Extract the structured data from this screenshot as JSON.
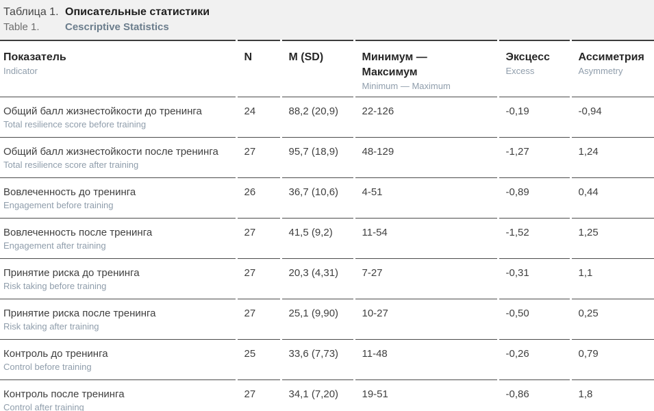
{
  "caption": {
    "label_ru": "Таблица 1.",
    "title_ru": "Описательные статистики",
    "label_en": "Table 1.",
    "title_en": "Cescriptive Statistics"
  },
  "table": {
    "columns": [
      {
        "ru": "Показатель",
        "en": "Indicator"
      },
      {
        "ru": "N",
        "en": ""
      },
      {
        "ru": "M (SD)",
        "en": ""
      },
      {
        "ru": "Минимум — Максимум",
        "en": "Minimum — Maximum"
      },
      {
        "ru": "Эксцесс",
        "en": "Excess"
      },
      {
        "ru": "Ассиметрия",
        "en": "Asymmetry"
      }
    ],
    "rows": [
      {
        "ru": "Общий балл жизнестойкости до тренинга",
        "en": "Total resilience score before training",
        "n": "24",
        "m_sd": "88,2 (20,9)",
        "min_max": "22-126",
        "excess": "-0,19",
        "asymmetry": "-0,94"
      },
      {
        "ru": "Общий балл жизнестойкости после тренинга",
        "en": "Total resilience score after training",
        "n": "27",
        "m_sd": "95,7 (18,9)",
        "min_max": "48-129",
        "excess": "-1,27",
        "asymmetry": "1,24"
      },
      {
        "ru": "Вовлеченность до тренинга",
        "en": "Engagement before training",
        "n": "26",
        "m_sd": "36,7 (10,6)",
        "min_max": "4-51",
        "excess": "-0,89",
        "asymmetry": "0,44"
      },
      {
        "ru": "Вовлеченность после тренинга",
        "en": "Engagement after training",
        "n": "27",
        "m_sd": "41,5 (9,2)",
        "min_max": "11-54",
        "excess": "-1,52",
        "asymmetry": "1,25"
      },
      {
        "ru": "Принятие риска до тренинга",
        "en": "Risk taking before training",
        "n": "27",
        "m_sd": "20,3 (4,31)",
        "min_max": "7-27",
        "excess": "-0,31",
        "asymmetry": "1,1"
      },
      {
        "ru": "Принятие риска после тренинга",
        "en": "Risk taking after training",
        "n": "27",
        "m_sd": "25,1 (9,90)",
        "min_max": "10-27",
        "excess": "-0,50",
        "asymmetry": "0,25"
      },
      {
        "ru": "Контроль до тренинга",
        "en": "Control before training",
        "n": "25",
        "m_sd": "33,6 (7,73)",
        "min_max": "11-48",
        "excess": "-0,26",
        "asymmetry": "0,79"
      },
      {
        "ru": "Контроль после тренинга",
        "en": "Control after training",
        "n": "27",
        "m_sd": "34,1 (7,20)",
        "min_max": "19-51",
        "excess": "-0,86",
        "asymmetry": "1,8"
      }
    ]
  },
  "colors": {
    "caption_background": "#f1f1f1",
    "separator_dark": "#3d3d3d",
    "row_border": "#4a4a4a",
    "text_primary": "#3f3f3f",
    "text_heading": "#262626",
    "text_secondary_en": "#8f9dab",
    "caption_title_en": "#6b7d8c"
  }
}
